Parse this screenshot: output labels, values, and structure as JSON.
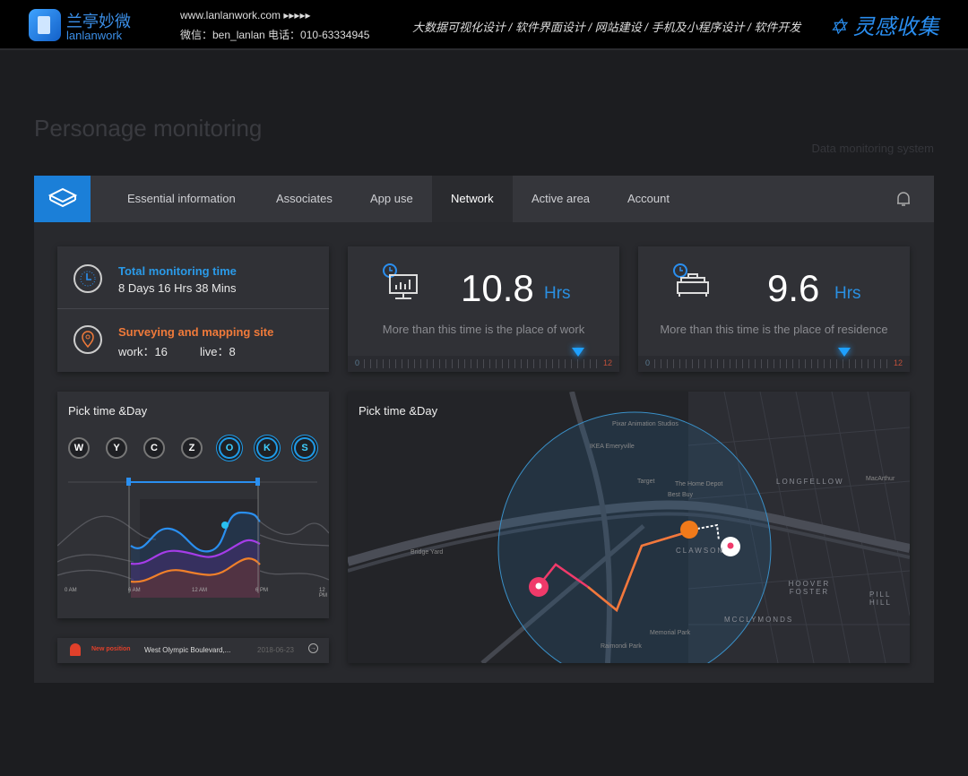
{
  "topbar": {
    "brand_cn": "兰亭妙微",
    "brand_en": "lanlanwork",
    "website": "www.lanlanwork.com ▸▸▸▸▸",
    "contact": "微信：ben_lanlan    电话：010-63334945",
    "services": "大数据可视化设计  /  软件界面设计  /  网站建设  /  手机及小程序设计  /  软件开发",
    "collect": "灵感收集"
  },
  "page": {
    "title": "Personage monitoring",
    "subtitle": "Data monitoring system"
  },
  "nav": {
    "tabs": [
      {
        "label": "Essential information"
      },
      {
        "label": "Associates"
      },
      {
        "label": "App use"
      },
      {
        "label": "Network",
        "active": true
      },
      {
        "label": "Active area"
      },
      {
        "label": "Account"
      }
    ]
  },
  "summary": {
    "monitoring_label": "Total monitoring time",
    "monitoring_value": "8 Days 16 Hrs 38 Mins",
    "site_label": "Surveying and mapping site",
    "work": "work：16",
    "live": "live：8"
  },
  "work_card": {
    "value": "10.8",
    "unit": "Hrs",
    "desc": "More than this time is the place of work",
    "min": "0",
    "max": "12",
    "marker": 10.8
  },
  "home_card": {
    "value": "9.6",
    "unit": "Hrs",
    "desc": "More than this time is the place of residence",
    "min": "0",
    "max": "12",
    "marker": 9.6
  },
  "time_chart": {
    "title": "Pick time &Day",
    "days": [
      {
        "label": "W",
        "on": false
      },
      {
        "label": "Y",
        "on": false
      },
      {
        "label": "C",
        "on": false
      },
      {
        "label": "Z",
        "on": false
      },
      {
        "label": "O",
        "on": true
      },
      {
        "label": "K",
        "on": true
      },
      {
        "label": "S",
        "on": true
      }
    ],
    "x_ticks": [
      "0 AM",
      "6 AM",
      "12 AM",
      "6 PM",
      "12 PM"
    ],
    "series_colors": [
      "#2a8ff0",
      "#a53ce8",
      "#f0802a"
    ]
  },
  "alert": {
    "label": "New position",
    "place": "West Olympic Boulevard,...",
    "date": "2018-06-23"
  },
  "map": {
    "title": "Pick time &Day",
    "districts": [
      "LONGFELLOW",
      "CLAWSON",
      "HOOVER FOSTER",
      "MCCLYMONDS",
      "PILL HILL"
    ],
    "places": [
      "Pixar Animation Studios",
      "IKEA Emeryville",
      "Target",
      "The Home Depot",
      "Best Buy",
      "Bridge Yard",
      "Memorial Park",
      "Raimondi Park",
      "MacArthur"
    ]
  },
  "colors": {
    "accent": "#1b7fd8",
    "orange": "#f0802a",
    "pink": "#f03a6a"
  }
}
